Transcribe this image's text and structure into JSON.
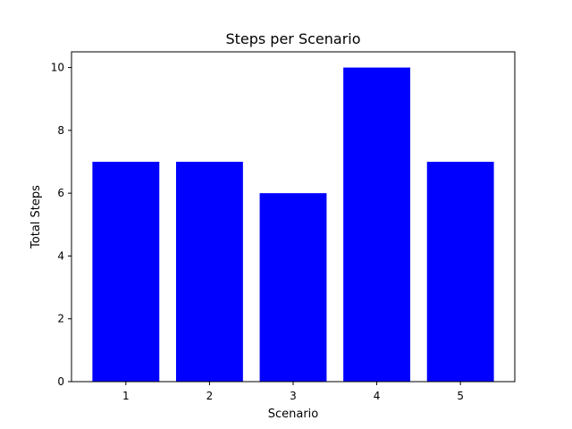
{
  "chart_data": {
    "type": "bar",
    "title": "Steps per Scenario",
    "xlabel": "Scenario",
    "ylabel": "Total Steps",
    "categories": [
      "1",
      "2",
      "3",
      "4",
      "5"
    ],
    "values": [
      7,
      7,
      6,
      10,
      7
    ],
    "ylim": [
      0,
      10.5
    ],
    "yticks": [
      "0",
      "2",
      "4",
      "6",
      "8",
      "10"
    ],
    "grid": false,
    "legend": "none",
    "bar_color": "#0000ff"
  }
}
